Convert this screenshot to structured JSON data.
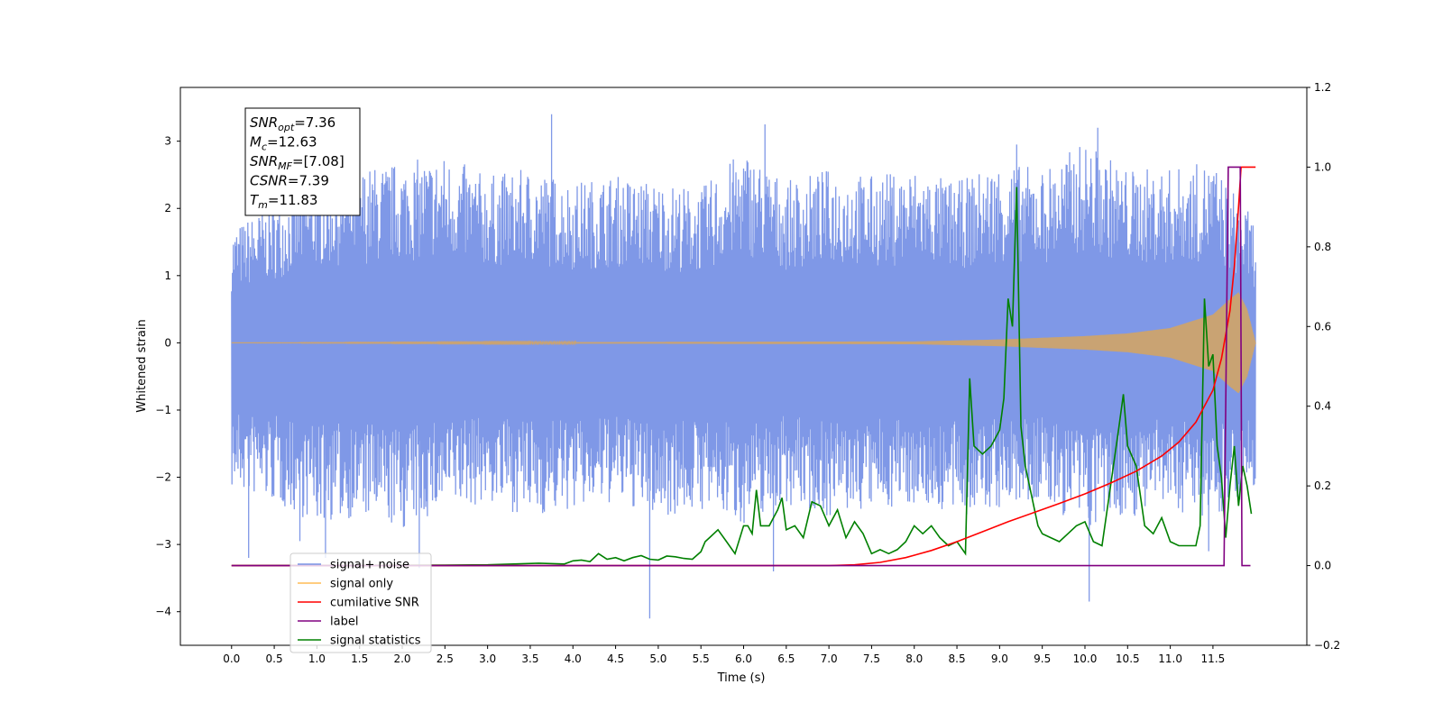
{
  "chart_data": {
    "type": "line",
    "xlabel": "Time (s)",
    "ylabel": "Whitened strain",
    "xlim": [
      -0.6,
      12.6
    ],
    "ylim": [
      -4.5,
      3.8
    ],
    "y2lim": [
      -0.2,
      1.2
    ],
    "x_ticks": [
      "0.0",
      "0.5",
      "1.0",
      "1.5",
      "2.0",
      "2.5",
      "3.0",
      "3.5",
      "4.0",
      "4.5",
      "5.0",
      "5.5",
      "6.0",
      "6.5",
      "7.0",
      "7.5",
      "8.0",
      "8.5",
      "9.0",
      "9.5",
      "10.0",
      "10.5",
      "11.0",
      "11.5"
    ],
    "y_ticks": [
      "3",
      "2",
      "1",
      "0",
      "−1",
      "−2",
      "−3",
      "−4"
    ],
    "y2_ticks": [
      "1.2",
      "1.0",
      "0.8",
      "0.6",
      "0.4",
      "0.2",
      "0.0",
      "−0.2"
    ],
    "annotation": [
      {
        "base": "SNR",
        "sub": "opt",
        "value": "=7.36"
      },
      {
        "base": "M",
        "sub": "c",
        "value": "=12.63"
      },
      {
        "base": "SNR",
        "sub": "MF",
        "value": "=[7.08]"
      },
      {
        "base": "CSNR",
        "sub": "",
        "value": "=7.39"
      },
      {
        "base": "T",
        "sub": "m",
        "value": "=11.83"
      }
    ],
    "legend_position": "lower-left",
    "legend": [
      {
        "label": "signal+ noise",
        "color": "#7892e6"
      },
      {
        "label": "signal only",
        "color": "#ffbb55"
      },
      {
        "label": "cumilative SNR",
        "color": "#ff0000"
      },
      {
        "label": "label",
        "color": "#800080"
      },
      {
        "label": "signal statistics",
        "color": "#008000"
      }
    ],
    "series": [
      {
        "name": "signal+ noise",
        "axis": "left",
        "color": "#7892e6",
        "x_range": [
          0.0,
          12.0
        ],
        "envelope_top": [
          [
            0.0,
            1.7
          ],
          [
            0.5,
            2.1
          ],
          [
            1.0,
            2.5
          ],
          [
            1.5,
            2.6
          ],
          [
            2.0,
            2.7
          ],
          [
            2.5,
            2.8
          ],
          [
            3.0,
            2.5
          ],
          [
            3.5,
            2.6
          ],
          [
            4.0,
            2.4
          ],
          [
            4.5,
            2.5
          ],
          [
            5.0,
            2.4
          ],
          [
            5.5,
            2.3
          ],
          [
            6.0,
            2.9
          ],
          [
            6.5,
            2.4
          ],
          [
            7.0,
            2.6
          ],
          [
            7.5,
            2.5
          ],
          [
            8.0,
            2.6
          ],
          [
            8.5,
            2.4
          ],
          [
            9.0,
            2.7
          ],
          [
            9.5,
            2.6
          ],
          [
            10.0,
            3.0
          ],
          [
            10.5,
            2.6
          ],
          [
            11.0,
            2.6
          ],
          [
            11.5,
            2.7
          ],
          [
            12.0,
            1.8
          ]
        ],
        "envelope_bottom": [
          [
            0.0,
            -2.2
          ],
          [
            0.5,
            -2.4
          ],
          [
            1.0,
            -2.7
          ],
          [
            1.5,
            -2.6
          ],
          [
            2.0,
            -2.8
          ],
          [
            2.5,
            -2.5
          ],
          [
            3.0,
            -2.4
          ],
          [
            3.5,
            -2.6
          ],
          [
            4.0,
            -2.5
          ],
          [
            4.5,
            -2.4
          ],
          [
            5.0,
            -2.6
          ],
          [
            5.5,
            -2.5
          ],
          [
            6.0,
            -2.7
          ],
          [
            6.5,
            -2.4
          ],
          [
            7.0,
            -2.6
          ],
          [
            7.5,
            -2.5
          ],
          [
            8.0,
            -2.4
          ],
          [
            8.5,
            -2.6
          ],
          [
            9.0,
            -2.5
          ],
          [
            9.5,
            -2.4
          ],
          [
            10.0,
            -2.8
          ],
          [
            10.5,
            -2.6
          ],
          [
            11.0,
            -2.5
          ],
          [
            11.5,
            -2.6
          ],
          [
            12.0,
            -2.2
          ]
        ],
        "spikes": [
          [
            0.2,
            -3.2
          ],
          [
            0.8,
            -2.95
          ],
          [
            1.1,
            -3.2
          ],
          [
            2.2,
            -3.35
          ],
          [
            3.75,
            3.4
          ],
          [
            4.9,
            -4.1
          ],
          [
            6.25,
            3.25
          ],
          [
            6.35,
            -3.4
          ],
          [
            10.05,
            -3.85
          ],
          [
            10.15,
            3.2
          ],
          [
            11.45,
            -3.1
          ],
          [
            9.2,
            2.95
          ]
        ]
      },
      {
        "name": "signal only",
        "axis": "left",
        "color": "#c9a373",
        "amplitude": [
          [
            0.0,
            0.0
          ],
          [
            8.0,
            0.02
          ],
          [
            9.0,
            0.05
          ],
          [
            10.0,
            0.1
          ],
          [
            10.5,
            0.14
          ],
          [
            11.0,
            0.22
          ],
          [
            11.5,
            0.42
          ],
          [
            11.7,
            0.65
          ],
          [
            11.8,
            0.75
          ],
          [
            11.9,
            0.5
          ],
          [
            12.0,
            0.0
          ]
        ]
      },
      {
        "name": "cumilative SNR",
        "axis": "right",
        "x": [
          0.0,
          7.0,
          7.3,
          7.6,
          7.9,
          8.2,
          8.5,
          8.8,
          9.1,
          9.4,
          9.7,
          10.0,
          10.3,
          10.6,
          10.9,
          11.1,
          11.3,
          11.5,
          11.6,
          11.7,
          11.75,
          11.8,
          11.83,
          11.9,
          12.0
        ],
        "y": [
          0.0,
          0.0,
          0.002,
          0.008,
          0.02,
          0.038,
          0.06,
          0.085,
          0.11,
          0.133,
          0.156,
          0.18,
          0.207,
          0.237,
          0.275,
          0.31,
          0.36,
          0.44,
          0.52,
          0.64,
          0.75,
          0.9,
          1.0,
          1.0,
          1.0
        ]
      },
      {
        "name": "label",
        "axis": "right",
        "x": [
          0.0,
          11.63,
          11.68,
          11.82,
          11.84,
          11.88,
          11.94
        ],
        "y": [
          0.0,
          0.0,
          1.0,
          1.0,
          0.0,
          0.0,
          0.0
        ]
      },
      {
        "name": "signal statistics",
        "axis": "right",
        "x": [
          0.0,
          2.5,
          3.0,
          3.3,
          3.6,
          3.9,
          4.0,
          4.1,
          4.2,
          4.3,
          4.4,
          4.5,
          4.6,
          4.7,
          4.8,
          4.9,
          5.0,
          5.1,
          5.2,
          5.3,
          5.4,
          5.5,
          5.55,
          5.6,
          5.7,
          5.8,
          5.9,
          6.0,
          6.05,
          6.1,
          6.15,
          6.2,
          6.3,
          6.4,
          6.45,
          6.5,
          6.6,
          6.7,
          6.8,
          6.9,
          7.0,
          7.1,
          7.2,
          7.3,
          7.4,
          7.5,
          7.6,
          7.7,
          7.8,
          7.9,
          8.0,
          8.1,
          8.2,
          8.3,
          8.4,
          8.5,
          8.6,
          8.65,
          8.7,
          8.8,
          8.9,
          9.0,
          9.05,
          9.1,
          9.15,
          9.2,
          9.25,
          9.3,
          9.35,
          9.4,
          9.45,
          9.5,
          9.6,
          9.7,
          9.8,
          9.9,
          10.0,
          10.1,
          10.2,
          10.3,
          10.4,
          10.45,
          10.5,
          10.6,
          10.7,
          10.8,
          10.9,
          11.0,
          11.1,
          11.2,
          11.3,
          11.35,
          11.4,
          11.45,
          11.5,
          11.55,
          11.6,
          11.65,
          11.7,
          11.75,
          11.8,
          11.85,
          11.9,
          11.95
        ],
        "y": [
          0.0,
          0.001,
          0.002,
          0.004,
          0.006,
          0.004,
          0.012,
          0.014,
          0.01,
          0.03,
          0.016,
          0.02,
          0.012,
          0.02,
          0.025,
          0.016,
          0.014,
          0.024,
          0.022,
          0.018,
          0.016,
          0.035,
          0.06,
          0.07,
          0.09,
          0.06,
          0.03,
          0.1,
          0.1,
          0.08,
          0.19,
          0.1,
          0.1,
          0.14,
          0.17,
          0.09,
          0.1,
          0.07,
          0.16,
          0.15,
          0.1,
          0.14,
          0.07,
          0.11,
          0.08,
          0.03,
          0.04,
          0.03,
          0.04,
          0.06,
          0.1,
          0.08,
          0.1,
          0.07,
          0.05,
          0.06,
          0.03,
          0.47,
          0.3,
          0.28,
          0.3,
          0.34,
          0.42,
          0.67,
          0.6,
          0.95,
          0.35,
          0.25,
          0.2,
          0.15,
          0.1,
          0.08,
          0.07,
          0.06,
          0.08,
          0.1,
          0.11,
          0.06,
          0.05,
          0.2,
          0.35,
          0.43,
          0.3,
          0.25,
          0.1,
          0.08,
          0.12,
          0.06,
          0.05,
          0.05,
          0.05,
          0.1,
          0.67,
          0.5,
          0.53,
          0.3,
          0.22,
          0.07,
          0.2,
          0.3,
          0.15,
          0.25,
          0.2,
          0.13
        ]
      }
    ]
  }
}
